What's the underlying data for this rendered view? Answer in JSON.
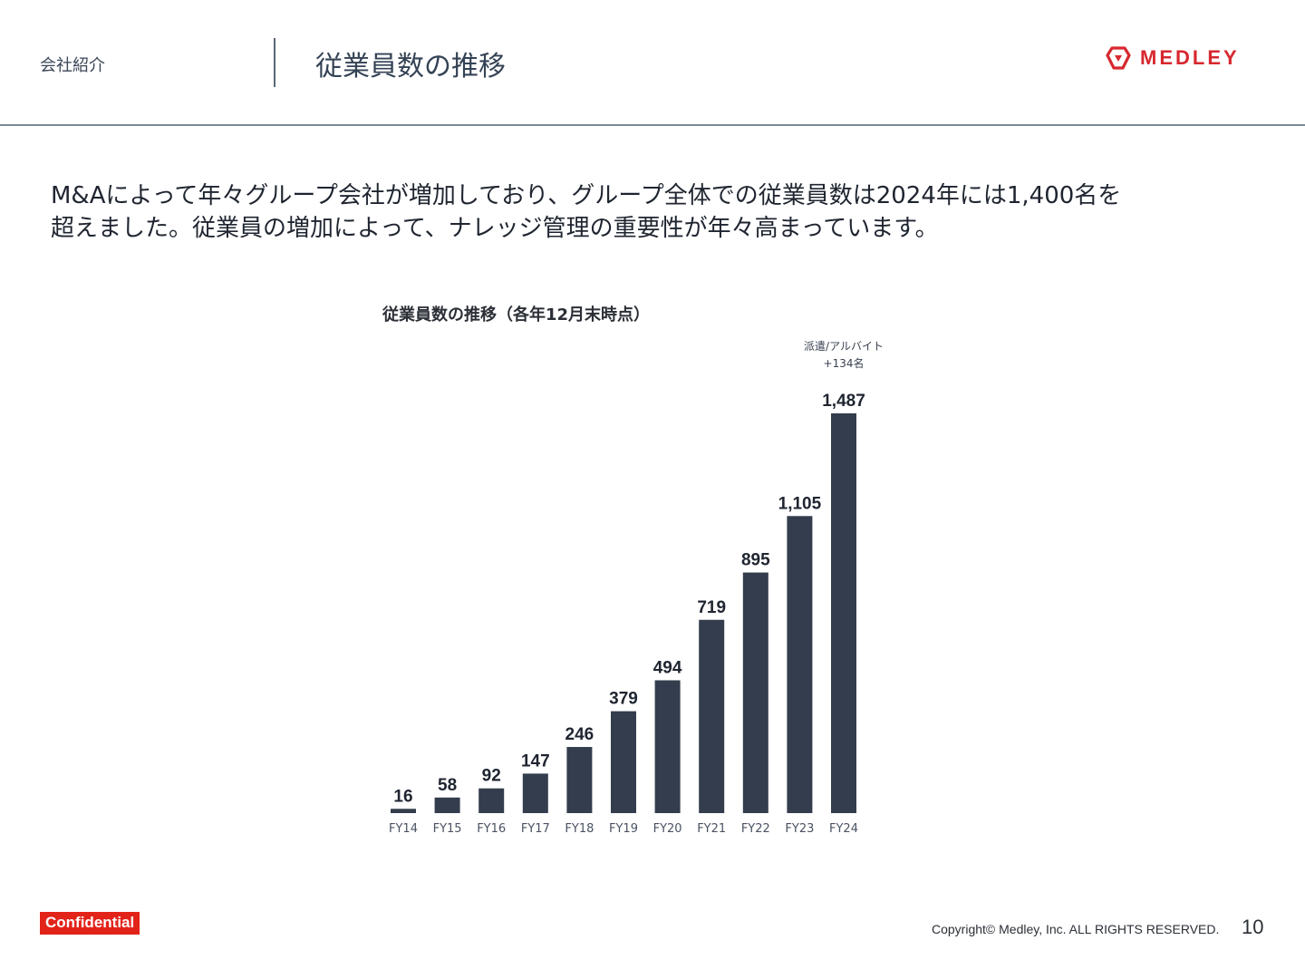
{
  "header": {
    "section": "会社紹介",
    "title": "従業員数の推移",
    "logo_text": "MEDLEY",
    "brand_color": "#d7282f"
  },
  "lead": {
    "line1": "M&Aによって年々グループ会社が増加しており、グループ全体での従業員数は2024年には1,400名を",
    "line2": "超えました。従業員の増加によって、ナレッジ管理の重要性が年々高まっています。"
  },
  "chart_data": {
    "type": "bar",
    "title": "従業員数の推移（各年12月末時点）",
    "categories": [
      "FY14",
      "FY15",
      "FY16",
      "FY17",
      "FY18",
      "FY19",
      "FY20",
      "FY21",
      "FY22",
      "FY23",
      "FY24"
    ],
    "values": [
      16,
      58,
      92,
      147,
      246,
      379,
      494,
      719,
      895,
      1105,
      1487
    ],
    "value_labels": [
      "16",
      "58",
      "92",
      "147",
      "246",
      "379",
      "494",
      "719",
      "895",
      "1,105",
      "1,487"
    ],
    "ylim": [
      0,
      1487
    ],
    "bar_color": "#333d4d",
    "annotation": {
      "line1": "派遣/アルバイト",
      "line2": "+134名",
      "category": "FY24"
    },
    "grid": false,
    "legend": "none"
  },
  "footer": {
    "confidential": "Confidential",
    "copyright": "Copyright© Medley, Inc. ALL RIGHTS RESERVED.",
    "page_number": "10"
  }
}
